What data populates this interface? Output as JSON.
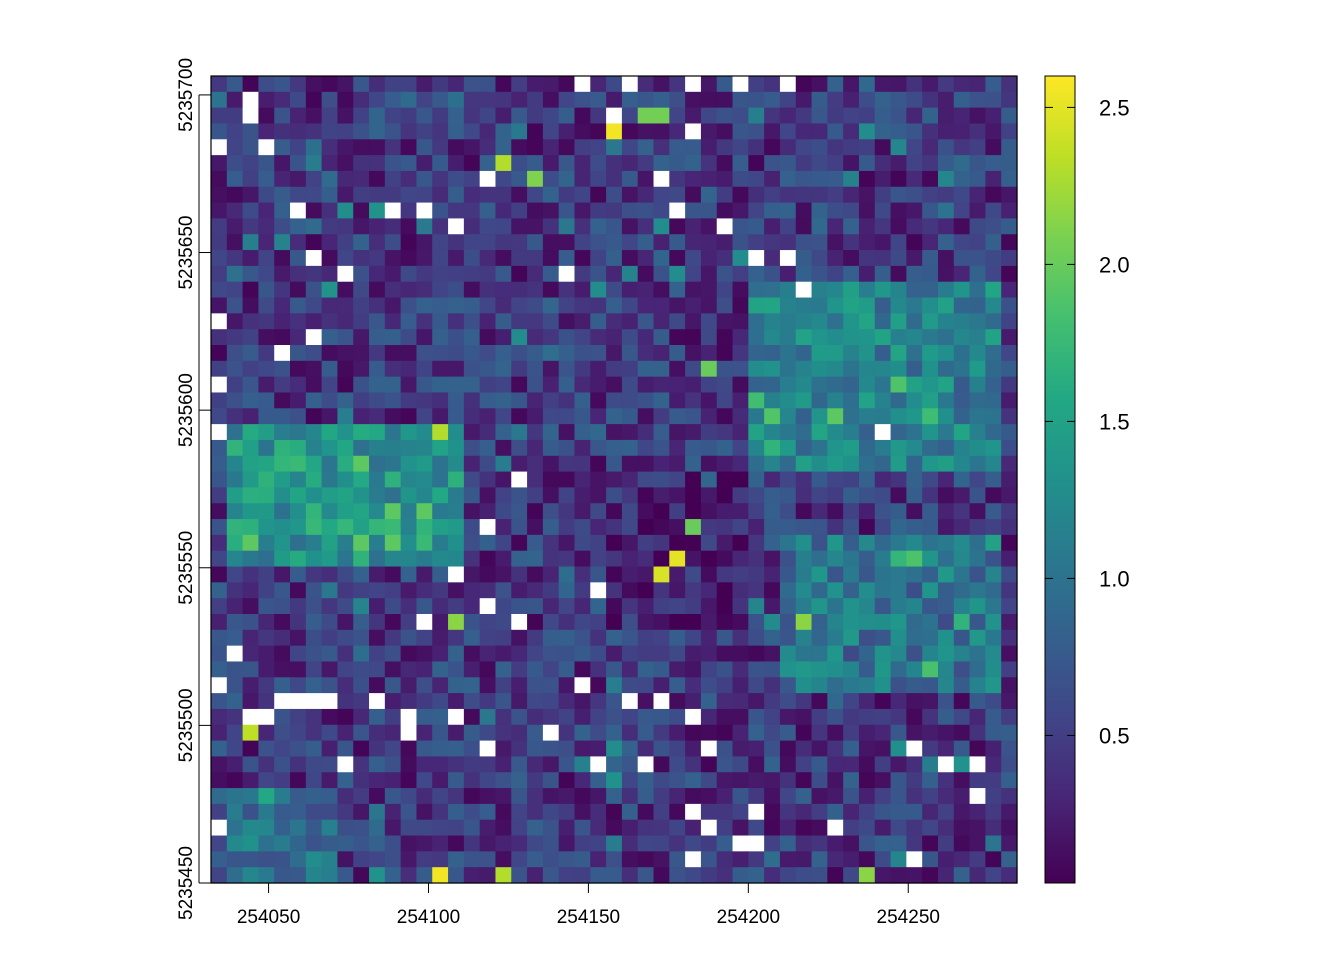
{
  "chart_data": {
    "type": "heatmap",
    "title": "",
    "xlabel": "",
    "ylabel": "",
    "xlim": [
      254032,
      254284
    ],
    "ylim": [
      5235450,
      5235706
    ],
    "x_ticks": [
      254050,
      254100,
      254150,
      254200,
      254250
    ],
    "x_tick_labels": [
      "254050",
      "254100",
      "254150",
      "254200",
      "254250"
    ],
    "y_ticks": [
      5235450,
      5235500,
      5235550,
      5235600,
      5235650,
      5235700
    ],
    "y_tick_labels": [
      "5235450",
      "5235500",
      "5235550",
      "5235600",
      "5235650",
      "5235700"
    ],
    "grid": false,
    "cell_size": 5,
    "ncols": 51,
    "nrows": 51,
    "value_range": [
      0.03,
      2.6
    ],
    "colorbar": {
      "colormap": "viridis",
      "ticks": [
        0.5,
        1.0,
        1.5,
        2.0,
        2.5
      ],
      "tick_labels": [
        "0.5",
        "1.0",
        "1.5",
        "2.0",
        "2.5"
      ]
    },
    "na_color": "#ffffff",
    "regions": [
      {
        "x": [
          254035,
          254110
        ],
        "y": [
          5235550,
          5235595
        ],
        "value": 1.35
      },
      {
        "x": [
          254035,
          254070
        ],
        "y": [
          5235450,
          5235480
        ],
        "value": 1.0
      },
      {
        "x": [
          254200,
          254280
        ],
        "y": [
          5235580,
          5235640
        ],
        "value": 1.15
      },
      {
        "x": [
          254210,
          254280
        ],
        "y": [
          5235510,
          5235560
        ],
        "value": 1.0
      },
      {
        "x": [
          254140,
          254200
        ],
        "y": [
          5235530,
          5235580
        ],
        "value": 0.25
      },
      {
        "x": [
          254110,
          254200
        ],
        "y": [
          5235640,
          5235705
        ],
        "value": 0.45
      }
    ],
    "highlights": [
      {
        "x": 254159,
        "y": 5235690,
        "value": 2.55
      },
      {
        "x": 254177,
        "y": 5235556,
        "value": 2.5
      },
      {
        "x": 254172,
        "y": 5235550,
        "value": 2.45
      },
      {
        "x": 254103,
        "y": 5235455,
        "value": 2.55
      },
      {
        "x": 254043,
        "y": 5235500,
        "value": 2.35
      },
      {
        "x": 254123,
        "y": 5235680,
        "value": 2.3
      },
      {
        "x": 254123,
        "y": 5235455,
        "value": 2.3
      },
      {
        "x": 254103,
        "y": 5235595,
        "value": 2.3
      },
      {
        "x": 254108,
        "y": 5235535,
        "value": 2.15
      },
      {
        "x": 254218,
        "y": 5235535,
        "value": 2.15
      },
      {
        "x": 254238,
        "y": 5235455,
        "value": 2.15
      },
      {
        "x": 254133,
        "y": 5235675,
        "value": 2.1
      },
      {
        "x": 254168,
        "y": 5235695,
        "value": 2.05
      },
      {
        "x": 254173,
        "y": 5235695,
        "value": 2.05
      },
      {
        "x": 254183,
        "y": 5235565,
        "value": 2.0
      },
      {
        "x": 254188,
        "y": 5235615,
        "value": 2.0
      },
      {
        "x": 254098,
        "y": 5235570,
        "value": 1.95
      }
    ],
    "na_cells": [
      [
        254044,
        5235700
      ],
      [
        254044,
        5235695
      ],
      [
        254034,
        5235685
      ],
      [
        254049,
        5235685
      ],
      [
        254119,
        5235675
      ],
      [
        254148,
        5235705
      ],
      [
        254163,
        5235705
      ],
      [
        254183,
        5235705
      ],
      [
        254198,
        5235705
      ],
      [
        254213,
        5235705
      ],
      [
        254158,
        5235695
      ],
      [
        254183,
        5235690
      ],
      [
        254173,
        5235675
      ],
      [
        254059,
        5235665
      ],
      [
        254089,
        5235665
      ],
      [
        254099,
        5235665
      ],
      [
        254109,
        5235660
      ],
      [
        254179,
        5235665
      ],
      [
        254194,
        5235660
      ],
      [
        254204,
        5235650
      ],
      [
        254064,
        5235650
      ],
      [
        254074,
        5235645
      ],
      [
        254144,
        5235645
      ],
      [
        254214,
        5235650
      ],
      [
        254219,
        5235640
      ],
      [
        254034,
        5235630
      ],
      [
        254054,
        5235620
      ],
      [
        254064,
        5235625
      ],
      [
        254034,
        5235610
      ],
      [
        254034,
        5235595
      ],
      [
        254244,
        5235595
      ],
      [
        254129,
        5235580
      ],
      [
        254119,
        5235565
      ],
      [
        254109,
        5235550
      ],
      [
        254119,
        5235540
      ],
      [
        254099,
        5235535
      ],
      [
        254129,
        5235535
      ],
      [
        254154,
        5235545
      ],
      [
        254039,
        5235525
      ],
      [
        254034,
        5235515
      ],
      [
        254054,
        5235510
      ],
      [
        254059,
        5235510
      ],
      [
        254064,
        5235510
      ],
      [
        254044,
        5235505
      ],
      [
        254049,
        5235505
      ],
      [
        254069,
        5235510
      ],
      [
        254084,
        5235510
      ],
      [
        254094,
        5235505
      ],
      [
        254094,
        5235500
      ],
      [
        254109,
        5235505
      ],
      [
        254119,
        5235495
      ],
      [
        254149,
        5235515
      ],
      [
        254164,
        5235510
      ],
      [
        254174,
        5235510
      ],
      [
        254184,
        5235505
      ],
      [
        254189,
        5235495
      ],
      [
        254169,
        5235490
      ],
      [
        254139,
        5235500
      ],
      [
        254154,
        5235490
      ],
      [
        254074,
        5235490
      ],
      [
        254184,
        5235475
      ],
      [
        254189,
        5235470
      ],
      [
        254199,
        5235465
      ],
      [
        254204,
        5235465
      ],
      [
        254204,
        5235475
      ],
      [
        254184,
        5235460
      ],
      [
        254229,
        5235470
      ],
      [
        254254,
        5235495
      ],
      [
        254264,
        5235490
      ],
      [
        254274,
        5235480
      ],
      [
        254274,
        5235490
      ],
      [
        254254,
        5235460
      ],
      [
        254034,
        5235470
      ],
      [
        254119,
        5235450
      ]
    ]
  }
}
